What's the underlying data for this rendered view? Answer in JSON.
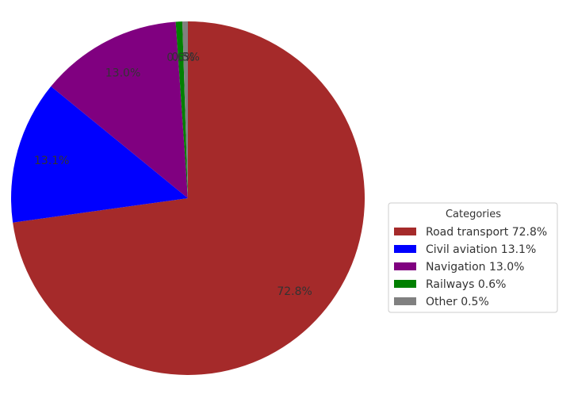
{
  "chart_data": {
    "type": "pie",
    "categories": [
      "Road transport",
      "Civil aviation",
      "Navigation",
      "Railways",
      "Other"
    ],
    "values": [
      72.8,
      13.1,
      13.0,
      0.6,
      0.5
    ],
    "colors": [
      "#a52a2a",
      "#0000ff",
      "#800080",
      "#008000",
      "#808080"
    ],
    "slice_labels": [
      "72.8%",
      "13.1%",
      "13.0%",
      "0.6%",
      "0.5%"
    ],
    "legend_title": "Categories",
    "legend_entries": [
      "Road transport 72.8%",
      "Civil aviation 13.1%",
      "Navigation 13.0%",
      "Railways 0.6%",
      "Other 0.5%"
    ],
    "legend_position": "center-right",
    "start_angle_deg": 90,
    "direction": "clockwise"
  }
}
